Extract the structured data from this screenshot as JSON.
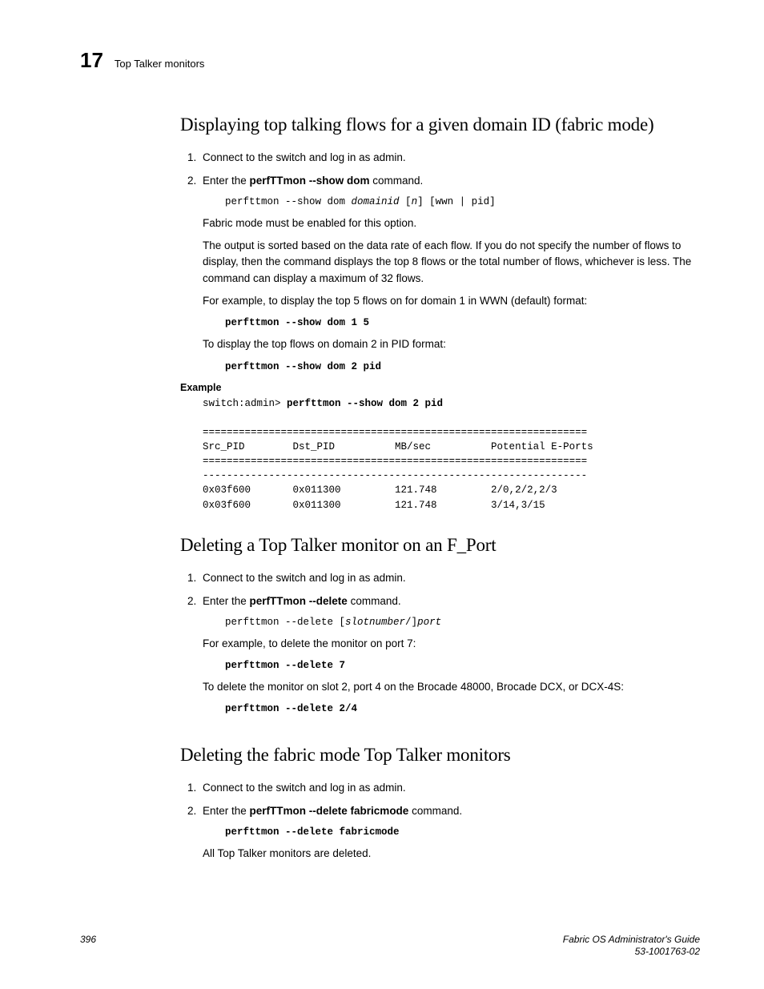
{
  "header": {
    "chapter_number": "17",
    "running_title": "Top Talker monitors"
  },
  "sections": [
    {
      "title": "Displaying top talking flows for a given domain ID (fabric mode)",
      "steps": [
        {
          "text": "Connect to the switch and log in as admin."
        },
        {
          "text_pre": "Enter the ",
          "cmd": "perfTTmon --show dom",
          "text_post": " command.",
          "code_plain": "perfttmon --show dom ",
          "code_italic": "domainid",
          "code_plain2": " [",
          "code_italic2": "n",
          "code_plain3": "] [wwn | pid]",
          "after": [
            "Fabric mode must be enabled for this option.",
            "The output is sorted based on the data rate of each flow. If you do not specify the number of flows to display, then the command displays the top 8 flows or the total number of flows, whichever is less. The command can display a maximum of 32 flows.",
            "For example, to display the top 5 flows on for domain 1 in WWN (default) format:"
          ],
          "code_bold_1": "perfttmon --show dom 1 5",
          "after2": "To display the top flows on domain 2 in PID format:",
          "code_bold_2": "perfttmon --show dom 2 pid"
        }
      ],
      "example": {
        "label": "Example",
        "prompt": "switch:admin> ",
        "cmd": "perfttmon --show dom 2 pid",
        "sep": "================================================================",
        "headers": "Src_PID        Dst_PID          MB/sec          Potential E-Ports",
        "dash": "----------------------------------------------------------------",
        "rows": [
          "0x03f600       0x011300         121.748         2/0,2/2,2/3",
          "0x03f600       0x011300         121.748         3/14,3/15"
        ]
      }
    },
    {
      "title": "Deleting a Top Talker monitor on an F_Port",
      "steps": [
        {
          "text": "Connect to the switch and log in as admin."
        },
        {
          "text_pre": "Enter the ",
          "cmd": "perfTTmon --delete",
          "text_post": " command.",
          "code_plain": "perfttmon --delete [",
          "code_italic": "slotnumber",
          "code_plain2": "/]",
          "code_italic2": "port",
          "after": [
            "For example, to delete the monitor on port 7:"
          ],
          "code_bold_1": "perfttmon --delete 7",
          "after2": "To delete the monitor on slot 2, port 4 on the Brocade 48000, Brocade DCX, or DCX-4S:",
          "code_bold_2": "perfttmon --delete 2/4"
        }
      ]
    },
    {
      "title": "Deleting the fabric mode Top Talker monitors",
      "steps": [
        {
          "text": "Connect to the switch and log in as admin."
        },
        {
          "text_pre": "Enter the ",
          "cmd": "perfTTmon --delete fabricmode",
          "text_post": " command.",
          "code_bold_1": "perfttmon --delete fabricmode",
          "after": [
            "All Top Talker monitors are deleted."
          ]
        }
      ]
    }
  ],
  "footer": {
    "page_number": "396",
    "doc_title": "Fabric OS Administrator's Guide",
    "doc_id": "53-1001763-02"
  }
}
